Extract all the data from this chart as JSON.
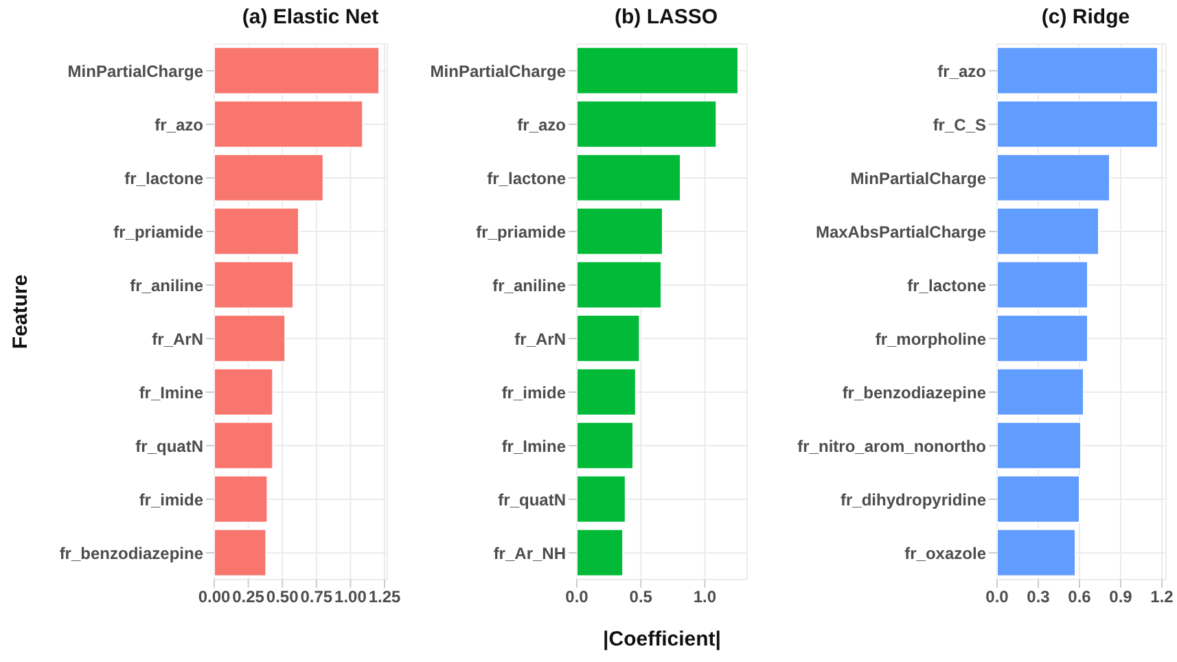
{
  "chart_data": [
    {
      "type": "bar",
      "orientation": "horizontal",
      "title": "(a) Elastic Net",
      "ylabel": "Feature",
      "categories": [
        "MinPartialCharge",
        "fr_azo",
        "fr_lactone",
        "fr_priamide",
        "fr_aniline",
        "fr_ArN",
        "fr_Imine",
        "fr_quatN",
        "fr_imide",
        "fr_benzodiazepine"
      ],
      "values": [
        1.21,
        1.09,
        0.8,
        0.62,
        0.58,
        0.52,
        0.43,
        0.43,
        0.39,
        0.38
      ],
      "color": "#f8766d",
      "xlim": [
        0,
        1.27
      ],
      "xticks": [
        {
          "value": 0,
          "label": "0.00"
        },
        {
          "value": 0.25,
          "label": "0.25"
        },
        {
          "value": 0.5,
          "label": "0.50"
        },
        {
          "value": 0.75,
          "label": "0.75"
        },
        {
          "value": 1,
          "label": "1.00"
        },
        {
          "value": 1.25,
          "label": "1.25"
        }
      ],
      "grid": true
    },
    {
      "type": "bar",
      "orientation": "horizontal",
      "title": "(b) LASSO",
      "xlabel": "|Coefficient|",
      "categories": [
        "MinPartialCharge",
        "fr_azo",
        "fr_lactone",
        "fr_priamide",
        "fr_aniline",
        "fr_ArN",
        "fr_imide",
        "fr_Imine",
        "fr_quatN",
        "fr_Ar_NH"
      ],
      "values": [
        1.26,
        1.09,
        0.81,
        0.67,
        0.66,
        0.49,
        0.46,
        0.44,
        0.38,
        0.36
      ],
      "color": "#00ba38",
      "xlim": [
        0,
        1.33
      ],
      "xticks": [
        {
          "value": 0,
          "label": "0.0"
        },
        {
          "value": 0.5,
          "label": "0.5"
        },
        {
          "value": 1,
          "label": "1.0"
        }
      ],
      "grid": true
    },
    {
      "type": "bar",
      "orientation": "horizontal",
      "title": "(c) Ridge",
      "categories": [
        "fr_azo",
        "fr_C_S",
        "MinPartialCharge",
        "MaxAbsPartialCharge",
        "fr_lactone",
        "fr_morpholine",
        "fr_benzodiazepine",
        "fr_nitro_arom_nonortho",
        "fr_dihydropyridine",
        "fr_oxazole"
      ],
      "values": [
        1.17,
        1.17,
        0.82,
        0.74,
        0.66,
        0.66,
        0.63,
        0.61,
        0.6,
        0.57
      ],
      "color": "#619cff",
      "xlim": [
        0,
        1.23
      ],
      "xticks": [
        {
          "value": 0,
          "label": "0.0"
        },
        {
          "value": 0.3,
          "label": "0.3"
        },
        {
          "value": 0.6,
          "label": "0.6"
        },
        {
          "value": 0.9,
          "label": "0.9"
        },
        {
          "value": 1.2,
          "label": "1.2"
        }
      ],
      "grid": true
    }
  ]
}
